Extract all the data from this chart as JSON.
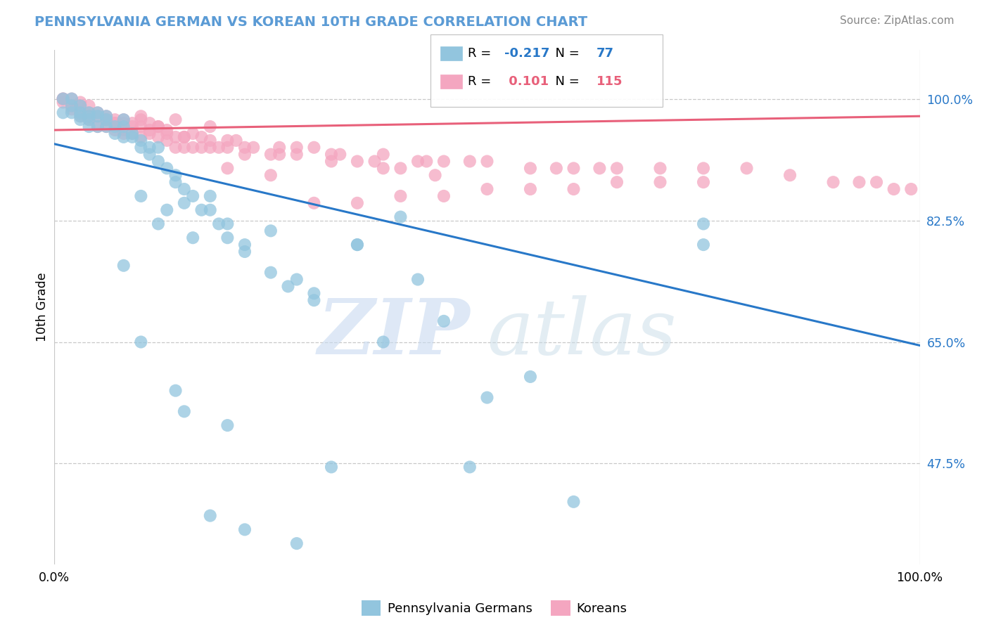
{
  "title": "PENNSYLVANIA GERMAN VS KOREAN 10TH GRADE CORRELATION CHART",
  "source": "Source: ZipAtlas.com",
  "ylabel": "10th Grade",
  "ytick_values": [
    0.475,
    0.65,
    0.825,
    1.0
  ],
  "ytick_labels": [
    "47.5%",
    "65.0%",
    "82.5%",
    "100.0%"
  ],
  "xlim": [
    0.0,
    1.0
  ],
  "ylim": [
    0.33,
    1.07
  ],
  "legend_blue_label": "Pennsylvania Germans",
  "legend_pink_label": "Koreans",
  "R_blue": -0.217,
  "N_blue": 77,
  "R_pink": 0.101,
  "N_pink": 115,
  "blue_color": "#92c5de",
  "pink_color": "#f4a6c0",
  "blue_line_color": "#2878c8",
  "pink_line_color": "#e8607a",
  "title_color": "#5b9bd5",
  "grid_color": "#c8c8c8",
  "bg_color": "#ffffff",
  "blue_trend_y_start": 0.935,
  "blue_trend_y_end": 0.645,
  "pink_trend_y_start": 0.955,
  "pink_trend_y_end": 0.975,
  "blue_points_x": [
    0.01,
    0.01,
    0.02,
    0.02,
    0.02,
    0.03,
    0.03,
    0.03,
    0.03,
    0.04,
    0.04,
    0.04,
    0.04,
    0.05,
    0.05,
    0.05,
    0.06,
    0.06,
    0.06,
    0.07,
    0.07,
    0.08,
    0.08,
    0.08,
    0.09,
    0.09,
    0.1,
    0.1,
    0.11,
    0.11,
    0.12,
    0.12,
    0.13,
    0.14,
    0.14,
    0.15,
    0.16,
    0.17,
    0.18,
    0.19,
    0.2,
    0.22,
    0.25,
    0.27,
    0.3,
    0.35,
    0.4,
    0.1,
    0.13,
    0.15,
    0.18,
    0.2,
    0.25,
    0.12,
    0.22,
    0.3,
    0.08,
    0.16,
    0.28,
    0.35,
    0.42,
    0.5,
    0.1,
    0.75,
    0.75,
    0.14,
    0.45,
    0.38,
    0.55,
    0.15,
    0.2,
    0.32,
    0.48,
    0.6,
    0.18,
    0.22,
    0.28
  ],
  "blue_points_y": [
    0.98,
    1.0,
    0.98,
    0.99,
    1.0,
    0.97,
    0.98,
    0.99,
    0.975,
    0.96,
    0.97,
    0.98,
    0.975,
    0.96,
    0.975,
    0.98,
    0.96,
    0.97,
    0.975,
    0.95,
    0.96,
    0.945,
    0.96,
    0.97,
    0.945,
    0.95,
    0.93,
    0.94,
    0.92,
    0.93,
    0.91,
    0.93,
    0.9,
    0.88,
    0.89,
    0.87,
    0.86,
    0.84,
    0.84,
    0.82,
    0.82,
    0.79,
    0.75,
    0.73,
    0.71,
    0.79,
    0.83,
    0.86,
    0.84,
    0.85,
    0.86,
    0.8,
    0.81,
    0.82,
    0.78,
    0.72,
    0.76,
    0.8,
    0.74,
    0.79,
    0.74,
    0.57,
    0.65,
    0.82,
    0.79,
    0.58,
    0.68,
    0.65,
    0.6,
    0.55,
    0.53,
    0.47,
    0.47,
    0.42,
    0.4,
    0.38,
    0.36
  ],
  "pink_points_x": [
    0.01,
    0.01,
    0.01,
    0.02,
    0.02,
    0.02,
    0.03,
    0.03,
    0.03,
    0.03,
    0.04,
    0.04,
    0.04,
    0.04,
    0.05,
    0.05,
    0.05,
    0.06,
    0.06,
    0.06,
    0.07,
    0.07,
    0.07,
    0.08,
    0.08,
    0.08,
    0.09,
    0.09,
    0.1,
    0.1,
    0.1,
    0.11,
    0.11,
    0.12,
    0.12,
    0.13,
    0.13,
    0.14,
    0.14,
    0.15,
    0.15,
    0.16,
    0.17,
    0.17,
    0.18,
    0.19,
    0.2,
    0.21,
    0.22,
    0.23,
    0.25,
    0.26,
    0.28,
    0.3,
    0.32,
    0.35,
    0.37,
    0.4,
    0.42,
    0.45,
    0.48,
    0.5,
    0.55,
    0.58,
    0.6,
    0.63,
    0.65,
    0.7,
    0.75,
    0.8,
    0.85,
    0.9,
    0.93,
    0.95,
    0.97,
    0.99,
    0.3,
    0.35,
    0.4,
    0.45,
    0.5,
    0.55,
    0.6,
    0.65,
    0.7,
    0.75,
    0.22,
    0.28,
    0.33,
    0.38,
    0.43,
    0.2,
    0.18,
    0.25,
    0.08,
    0.12,
    0.16,
    0.1,
    0.14,
    0.18,
    0.06,
    0.09,
    0.13,
    0.07,
    0.11,
    0.15,
    0.2,
    0.26,
    0.32,
    0.38,
    0.44
  ],
  "pink_points_y": [
    0.995,
    1.0,
    1.0,
    0.985,
    0.99,
    1.0,
    0.975,
    0.98,
    0.99,
    0.995,
    0.97,
    0.98,
    0.99,
    0.975,
    0.96,
    0.975,
    0.98,
    0.96,
    0.97,
    0.975,
    0.955,
    0.965,
    0.97,
    0.955,
    0.965,
    0.97,
    0.95,
    0.965,
    0.945,
    0.96,
    0.97,
    0.95,
    0.965,
    0.945,
    0.96,
    0.94,
    0.955,
    0.93,
    0.945,
    0.93,
    0.945,
    0.93,
    0.93,
    0.945,
    0.93,
    0.93,
    0.93,
    0.94,
    0.92,
    0.93,
    0.92,
    0.93,
    0.92,
    0.93,
    0.92,
    0.91,
    0.91,
    0.9,
    0.91,
    0.91,
    0.91,
    0.91,
    0.9,
    0.9,
    0.9,
    0.9,
    0.9,
    0.9,
    0.9,
    0.9,
    0.89,
    0.88,
    0.88,
    0.88,
    0.87,
    0.87,
    0.85,
    0.85,
    0.86,
    0.86,
    0.87,
    0.87,
    0.87,
    0.88,
    0.88,
    0.88,
    0.93,
    0.93,
    0.92,
    0.92,
    0.91,
    0.9,
    0.94,
    0.89,
    0.95,
    0.96,
    0.95,
    0.975,
    0.97,
    0.96,
    0.97,
    0.96,
    0.95,
    0.965,
    0.955,
    0.945,
    0.94,
    0.92,
    0.91,
    0.9,
    0.89
  ]
}
